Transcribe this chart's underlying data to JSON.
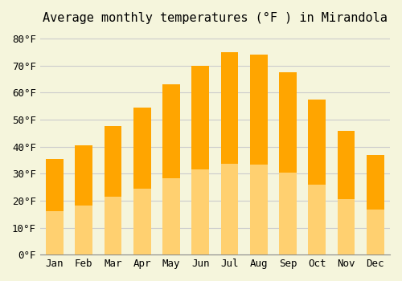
{
  "title": "Average monthly temperatures (°F ) in Mirandola",
  "months": [
    "Jan",
    "Feb",
    "Mar",
    "Apr",
    "May",
    "Jun",
    "Jul",
    "Aug",
    "Sep",
    "Oct",
    "Nov",
    "Dec"
  ],
  "values": [
    35.5,
    40.5,
    47.5,
    54.5,
    63.0,
    70.0,
    75.0,
    74.0,
    67.5,
    57.5,
    46.0,
    37.0
  ],
  "bar_color_top": "#FFA500",
  "bar_color_bottom": "#FFD070",
  "ylim": [
    0,
    83
  ],
  "yticks": [
    0,
    10,
    20,
    30,
    40,
    50,
    60,
    70,
    80
  ],
  "ytick_labels": [
    "0°F",
    "10°F",
    "20°F",
    "30°F",
    "40°F",
    "50°F",
    "60°F",
    "70°F",
    "80°F"
  ],
  "background_color": "#F5F5DC",
  "grid_color": "#CCCCCC",
  "title_fontsize": 11,
  "tick_fontsize": 9,
  "font_family": "monospace"
}
